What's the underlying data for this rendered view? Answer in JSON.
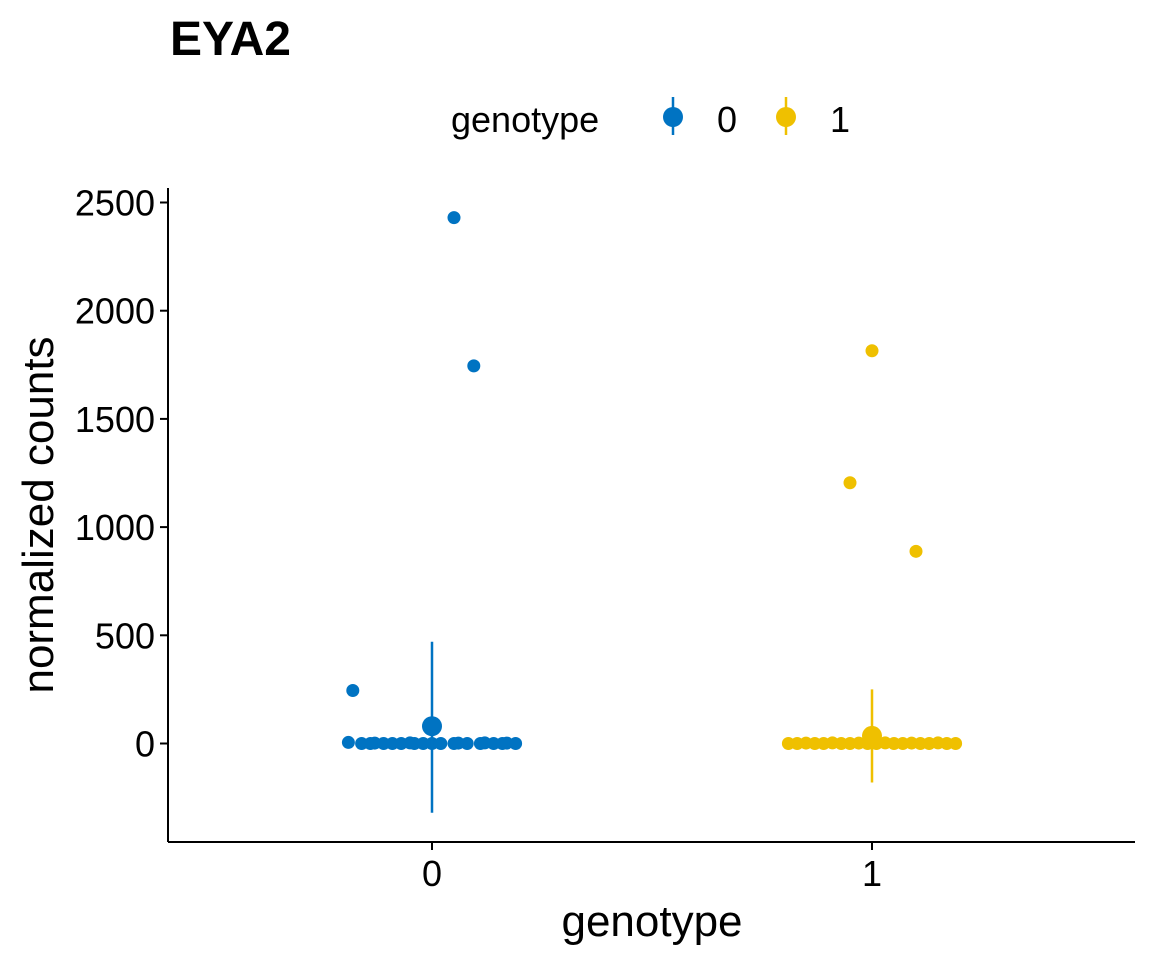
{
  "chart_data": {
    "type": "scatter",
    "title": "EYA2",
    "xlabel": "genotype",
    "ylabel": "normalized counts",
    "categories": [
      "0",
      "1"
    ],
    "ylim": [
      -450,
      2570
    ],
    "yticks": [
      0,
      500,
      1000,
      1500,
      2000,
      2500
    ],
    "ytick_labels": [
      "0",
      "500",
      "1000",
      "1500",
      "2000",
      "2500"
    ],
    "grid": false,
    "legend": {
      "title": "genotype",
      "position": "top",
      "entries": [
        {
          "label": "0",
          "color": "#0073C2"
        },
        {
          "label": "1",
          "color": "#EFC000"
        }
      ]
    },
    "series": [
      {
        "name": "0",
        "color": "#0073C2",
        "mean": 80,
        "error_low": -320,
        "error_high": 470,
        "points": [
          {
            "x": 0.05,
            "y": 2430
          },
          {
            "x": 0.095,
            "y": 1745
          },
          {
            "x": -0.18,
            "y": 245
          },
          {
            "x": -0.19,
            "y": 5
          },
          {
            "x": -0.16,
            "y": 0
          },
          {
            "x": -0.14,
            "y": 0
          },
          {
            "x": -0.13,
            "y": 2
          },
          {
            "x": -0.11,
            "y": 0
          },
          {
            "x": -0.09,
            "y": 0
          },
          {
            "x": -0.07,
            "y": 0
          },
          {
            "x": -0.05,
            "y": 3
          },
          {
            "x": -0.04,
            "y": 0
          },
          {
            "x": -0.02,
            "y": 0
          },
          {
            "x": 0.0,
            "y": 0
          },
          {
            "x": 0.02,
            "y": 0
          },
          {
            "x": 0.05,
            "y": 0
          },
          {
            "x": 0.06,
            "y": 2
          },
          {
            "x": 0.08,
            "y": 0
          },
          {
            "x": 0.11,
            "y": 0
          },
          {
            "x": 0.12,
            "y": 3
          },
          {
            "x": 0.14,
            "y": 0
          },
          {
            "x": 0.16,
            "y": 0
          },
          {
            "x": 0.17,
            "y": 2
          },
          {
            "x": 0.19,
            "y": 0
          }
        ]
      },
      {
        "name": "1",
        "color": "#EFC000",
        "mean": 35,
        "error_low": -180,
        "error_high": 250,
        "points": [
          {
            "x": 1.0,
            "y": 1815
          },
          {
            "x": 0.95,
            "y": 1205
          },
          {
            "x": 1.1,
            "y": 888
          },
          {
            "x": 0.81,
            "y": 0
          },
          {
            "x": 0.83,
            "y": 0
          },
          {
            "x": 0.85,
            "y": 2
          },
          {
            "x": 0.87,
            "y": 0
          },
          {
            "x": 0.89,
            "y": 0
          },
          {
            "x": 0.91,
            "y": 3
          },
          {
            "x": 0.93,
            "y": 0
          },
          {
            "x": 0.95,
            "y": 0
          },
          {
            "x": 0.97,
            "y": 2
          },
          {
            "x": 0.99,
            "y": 0
          },
          {
            "x": 1.01,
            "y": 0
          },
          {
            "x": 1.03,
            "y": 3
          },
          {
            "x": 1.05,
            "y": 0
          },
          {
            "x": 1.07,
            "y": 0
          },
          {
            "x": 1.09,
            "y": 2
          },
          {
            "x": 1.11,
            "y": 0
          },
          {
            "x": 1.13,
            "y": 0
          },
          {
            "x": 1.15,
            "y": 3
          },
          {
            "x": 1.17,
            "y": 0
          },
          {
            "x": 1.19,
            "y": 0
          }
        ]
      }
    ]
  }
}
